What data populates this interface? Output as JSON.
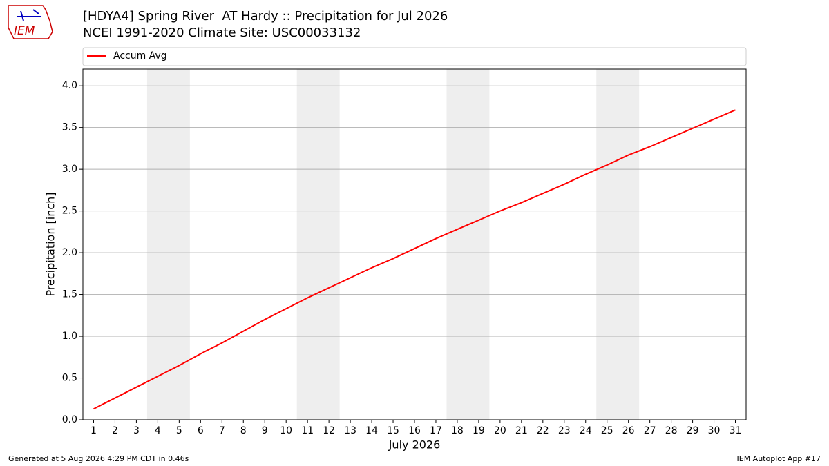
{
  "logo_text": "IEM",
  "footer_left": "Generated at 5 Aug 2026 4:29 PM CDT in 0.46s",
  "footer_right": "IEM Autoplot App #17",
  "chart_data": {
    "type": "line",
    "title": "[HDYA4] Spring River  AT Hardy :: Precipitation for Jul 2026",
    "subtitle": "NCEI 1991-2020 Climate Site: USC00033132",
    "xlabel": "July 2026",
    "ylabel": "Precipitation [inch]",
    "x": [
      1,
      2,
      3,
      4,
      5,
      6,
      7,
      8,
      9,
      10,
      11,
      12,
      13,
      14,
      15,
      16,
      17,
      18,
      19,
      20,
      21,
      22,
      23,
      24,
      25,
      26,
      27,
      28,
      29,
      30,
      31
    ],
    "series": [
      {
        "name": "Accum Avg",
        "color": "#ff0000",
        "values": [
          0.13,
          0.26,
          0.39,
          0.52,
          0.65,
          0.79,
          0.92,
          1.06,
          1.2,
          1.33,
          1.46,
          1.58,
          1.7,
          1.82,
          1.93,
          2.05,
          2.17,
          2.28,
          2.39,
          2.5,
          2.6,
          2.71,
          2.82,
          2.94,
          3.05,
          3.17,
          3.27,
          3.38,
          3.49,
          3.6,
          3.71
        ]
      }
    ],
    "xlim": [
      0.5,
      31.5
    ],
    "ylim": [
      0,
      4.2
    ],
    "xticks": [
      1,
      2,
      3,
      4,
      5,
      6,
      7,
      8,
      9,
      10,
      11,
      12,
      13,
      14,
      15,
      16,
      17,
      18,
      19,
      20,
      21,
      22,
      23,
      24,
      25,
      26,
      27,
      28,
      29,
      30,
      31
    ],
    "yticks": [
      {
        "value": 0,
        "label": "0.0"
      },
      0.5,
      {
        "value": 1,
        "label": "1.0"
      },
      1.5,
      {
        "value": 2,
        "label": "2.0"
      },
      2.5,
      {
        "value": 3,
        "label": "3.0"
      },
      3.5,
      {
        "value": 4,
        "label": "4.0"
      }
    ],
    "shaded_ranges": [
      [
        3.5,
        5.5
      ],
      [
        10.5,
        12.5
      ],
      [
        17.5,
        19.5
      ],
      [
        24.5,
        26.5
      ]
    ],
    "shade_color": "#eeeeee",
    "grid": true,
    "legend": "top"
  }
}
